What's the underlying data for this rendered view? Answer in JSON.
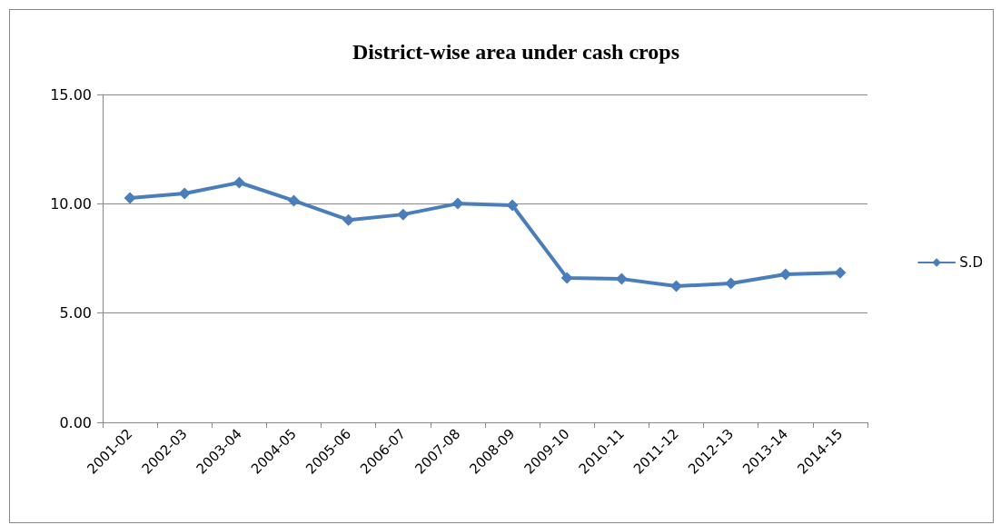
{
  "chart_data": {
    "type": "line",
    "title": "District-wise area under cash crops",
    "categories": [
      "2001-02",
      "2002-03",
      "2003-04",
      "2004-05",
      "2005-06",
      "2006-07",
      "2007-08",
      "2008-09",
      "2009-10",
      "2010-11",
      "2011-12",
      "2012-13",
      "2013-14",
      "2014-15"
    ],
    "series": [
      {
        "name": "S.D",
        "color": "#4a7ebb",
        "values": [
          10.26,
          10.47,
          10.97,
          10.14,
          9.26,
          9.51,
          10.01,
          9.93,
          6.61,
          6.56,
          6.23,
          6.36,
          6.77,
          6.85
        ]
      }
    ],
    "ylim": [
      0,
      15
    ],
    "yticks": [
      {
        "value": 0,
        "label": "0.00"
      },
      {
        "value": 5,
        "label": "5.00"
      },
      {
        "value": 10,
        "label": "10.00"
      },
      {
        "value": 15,
        "label": "15.00"
      }
    ],
    "grid": "y",
    "legend": "right",
    "marker": "diamond",
    "line_style": "solid"
  }
}
